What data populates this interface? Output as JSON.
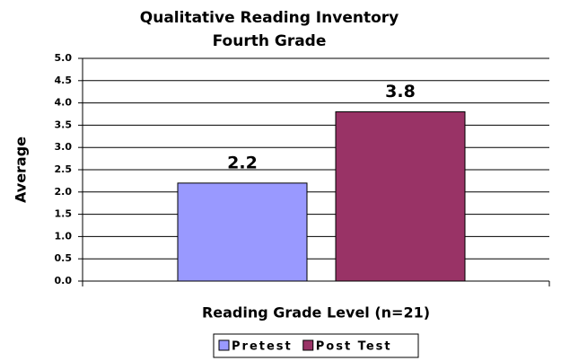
{
  "chart_data": {
    "type": "bar",
    "title": "Qualitative Reading Inventory",
    "subtitle": "Fourth Grade",
    "y_label": "Average",
    "x_label": "Reading Grade Level (n=21)",
    "categories": [
      null
    ],
    "series": [
      {
        "name": "Pretest",
        "color": "#9999ff",
        "values": [
          2.2
        ]
      },
      {
        "name": "Post Test",
        "color": "#993366",
        "values": [
          3.8
        ]
      }
    ],
    "ylim": [
      0,
      5
    ],
    "yticks": [
      {
        "value": 0,
        "label": "0.0"
      },
      0.5,
      {
        "value": 1,
        "label": "1.0"
      },
      1.5,
      {
        "value": 2,
        "label": "2.0"
      },
      2.5,
      {
        "value": 3,
        "label": "3.0"
      },
      3.5,
      {
        "value": 4,
        "label": "4.0"
      },
      4.5,
      {
        "value": 5,
        "label": "5.0"
      }
    ],
    "grid": true,
    "legend": "bottom"
  }
}
